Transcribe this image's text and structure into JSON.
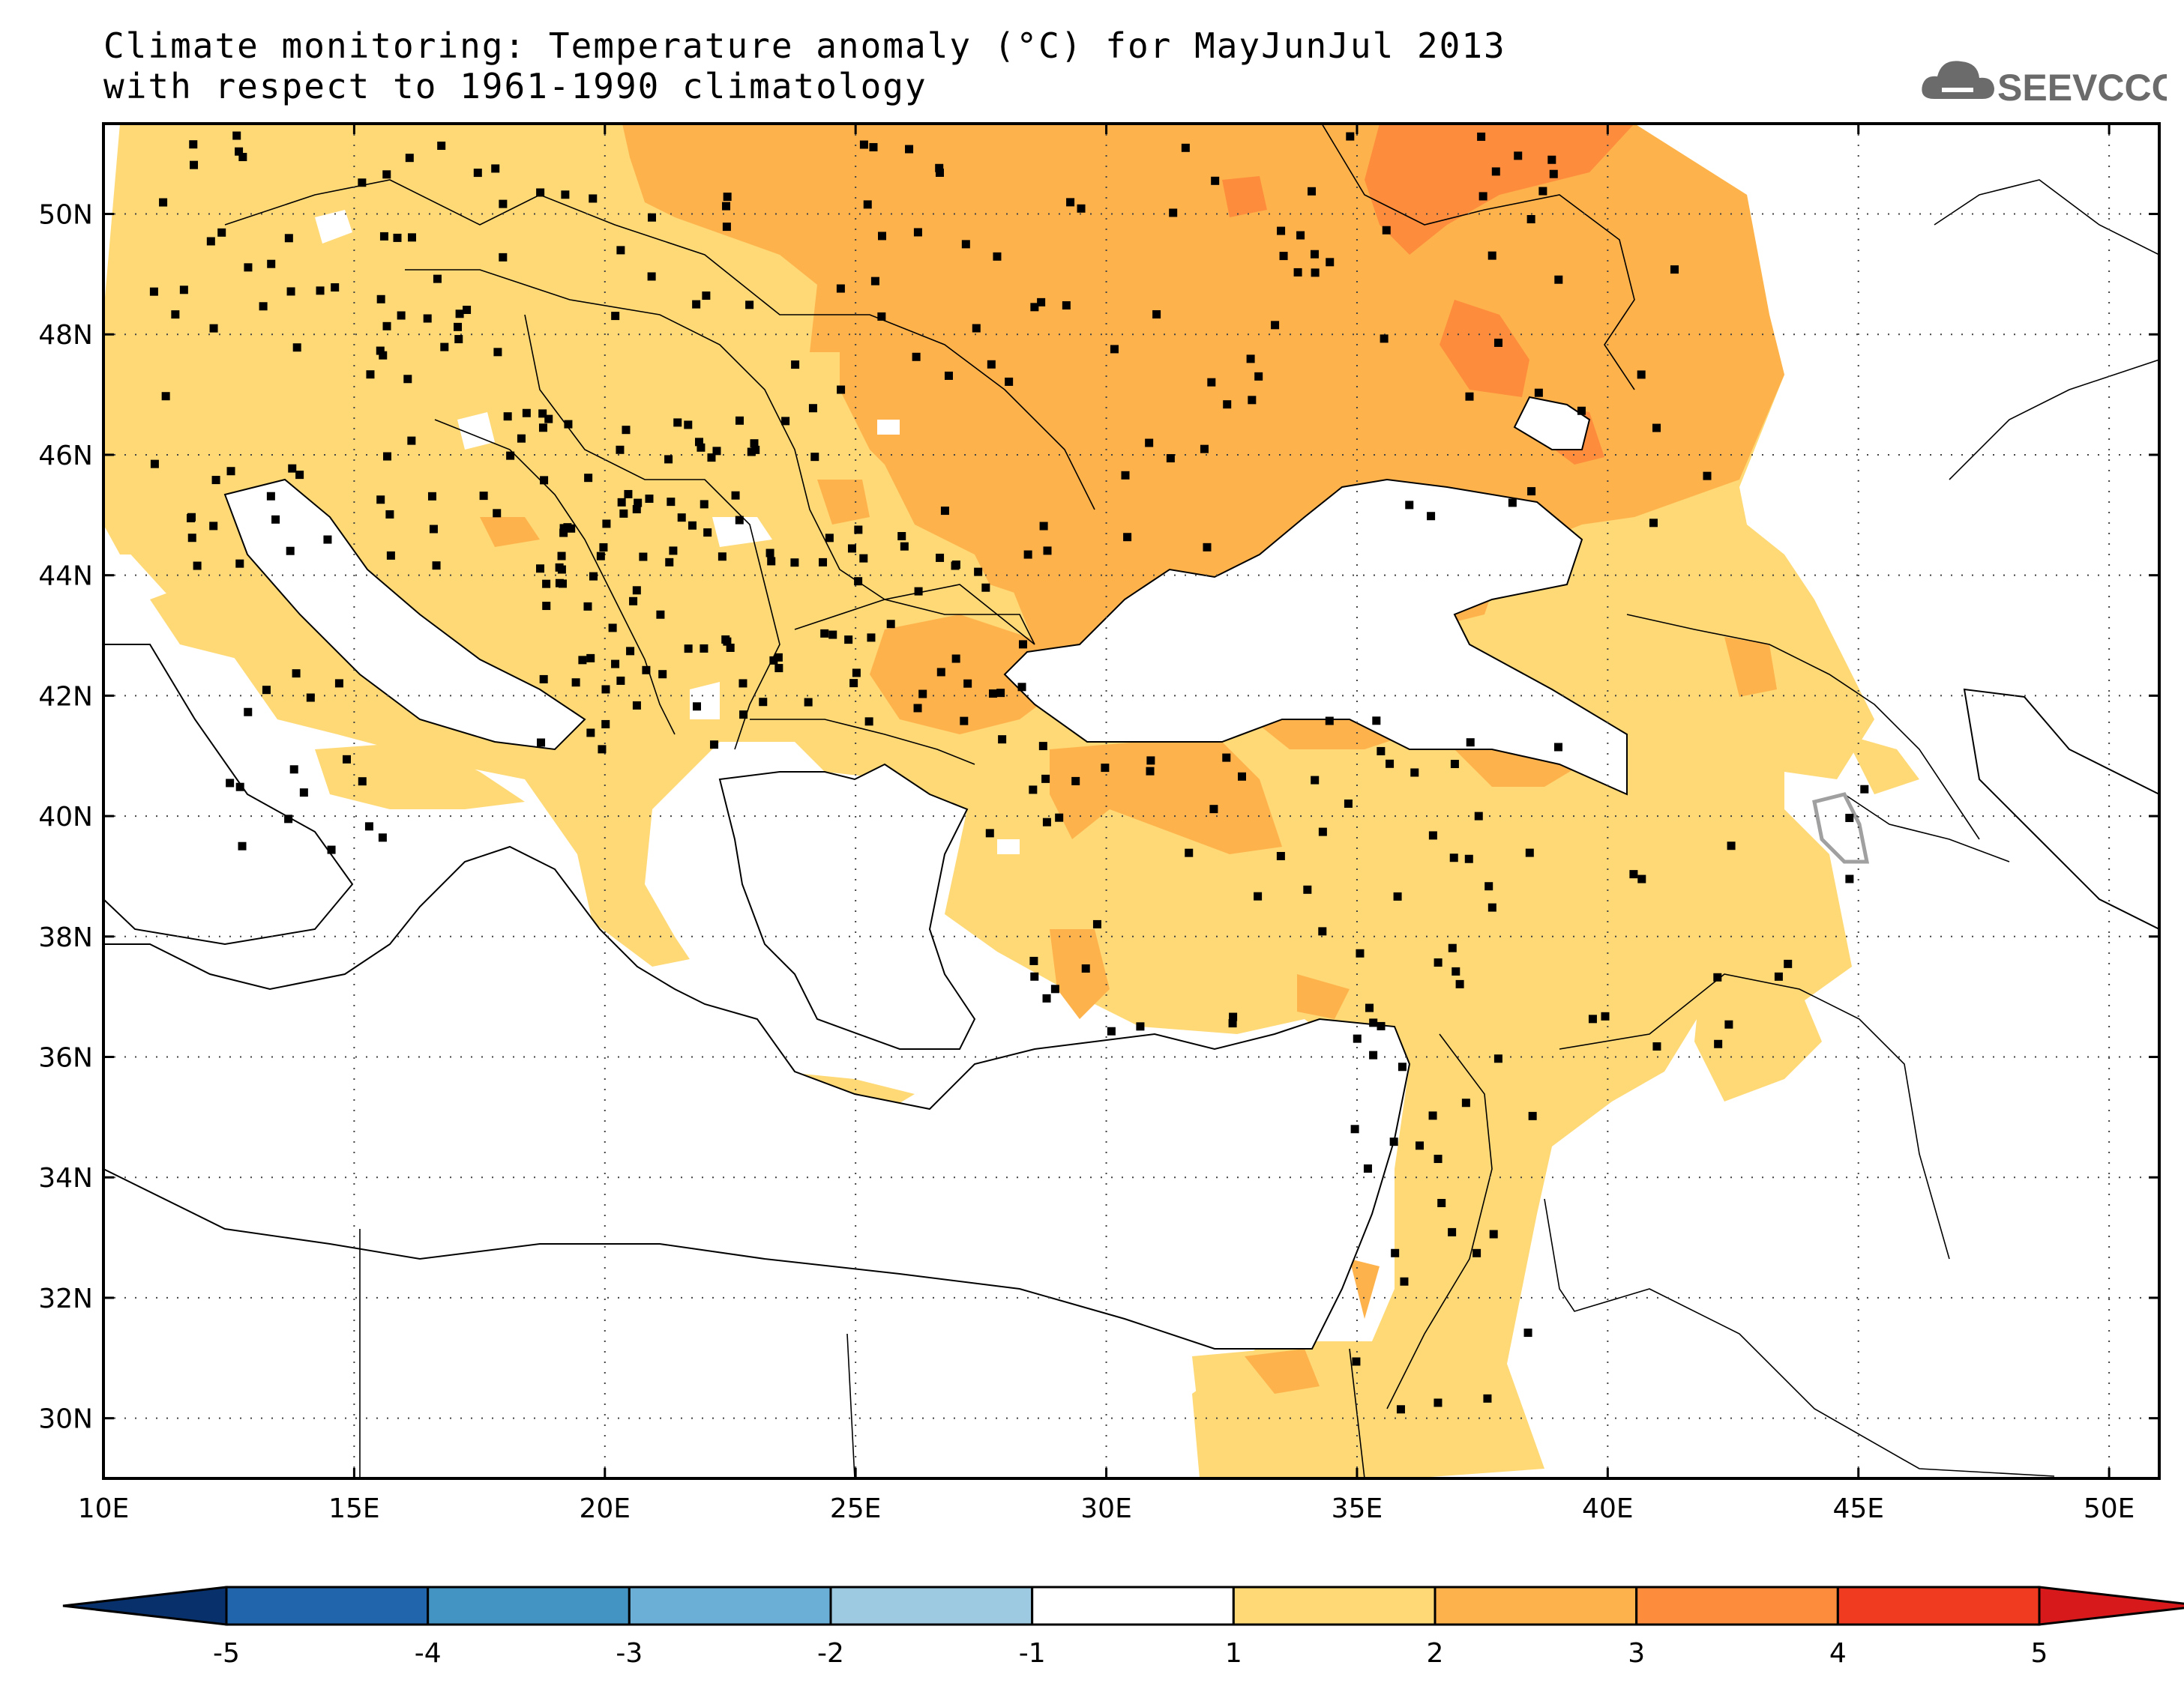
{
  "title": {
    "line1": "Climate monitoring: Temperature anomaly (°C) for MayJunJul 2013",
    "line2": "with respect to 1961-1990 climatology"
  },
  "logo": {
    "text": "SEEVCCC",
    "icon": "cloud-icon"
  },
  "map": {
    "lon_range": [
      10,
      51
    ],
    "lat_range": [
      29,
      51.5
    ],
    "lat_labels": [
      "50N",
      "48N",
      "46N",
      "44N",
      "42N",
      "40N",
      "38N",
      "36N",
      "34N",
      "32N",
      "30N"
    ],
    "lon_labels": [
      "10E",
      "15E",
      "20E",
      "25E",
      "30E",
      "35E",
      "40E",
      "45E",
      "50E"
    ],
    "grid": "dotted"
  },
  "colorbar": {
    "labels": [
      "-5",
      "-4",
      "-3",
      "-2",
      "-1",
      "1",
      "2",
      "3",
      "4",
      "5"
    ],
    "colors": [
      "#08306b",
      "#2166ac",
      "#4393c3",
      "#6baed6",
      "#9ecae1",
      "#ffffff",
      "#fed976",
      "#feb24c",
      "#fd8d3c",
      "#f03b20",
      "#d7191c"
    ]
  },
  "colors": {
    "anomaly_1_2": "#fed976",
    "anomaly_2_3": "#feb24c",
    "anomaly_3_4": "#fd8d3c",
    "station": "#000000"
  }
}
